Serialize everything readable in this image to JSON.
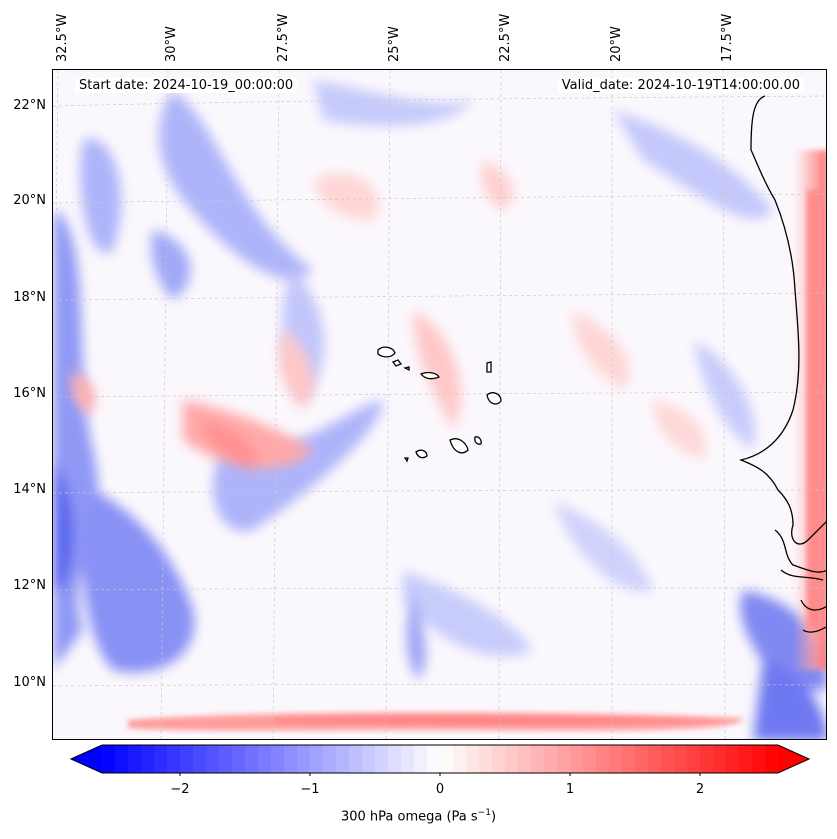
{
  "map": {
    "start_date": "Start date: 2024-10-19_00:00:00",
    "valid_date": "Valid_date: 2024-10-19T14:00:00.00",
    "lon_labels": [
      "32.5°W",
      "30°W",
      "27.5°W",
      "25°W",
      "22.5°W",
      "20°W",
      "17.5°W"
    ],
    "lat_labels": [
      "22°N",
      "20°N",
      "18°N",
      "16°N",
      "14°N",
      "12°N",
      "10°N"
    ],
    "colorbar": {
      "label": "300 hPa omega (Pa s",
      "label_sup": "−1",
      "label_end": ")",
      "ticks": [
        "−2",
        "−1",
        "0",
        "1",
        "2"
      ],
      "tick_values": [
        -2,
        -1,
        0,
        1,
        2
      ],
      "range": [
        -2.6,
        2.6
      ],
      "colormap": "bwr",
      "negative_color": "#0000ff",
      "zero_color": "#ffffff",
      "positive_color": "#ff0000"
    },
    "coastline_color": "#000000",
    "gridline_color": "#c8c8c8"
  }
}
